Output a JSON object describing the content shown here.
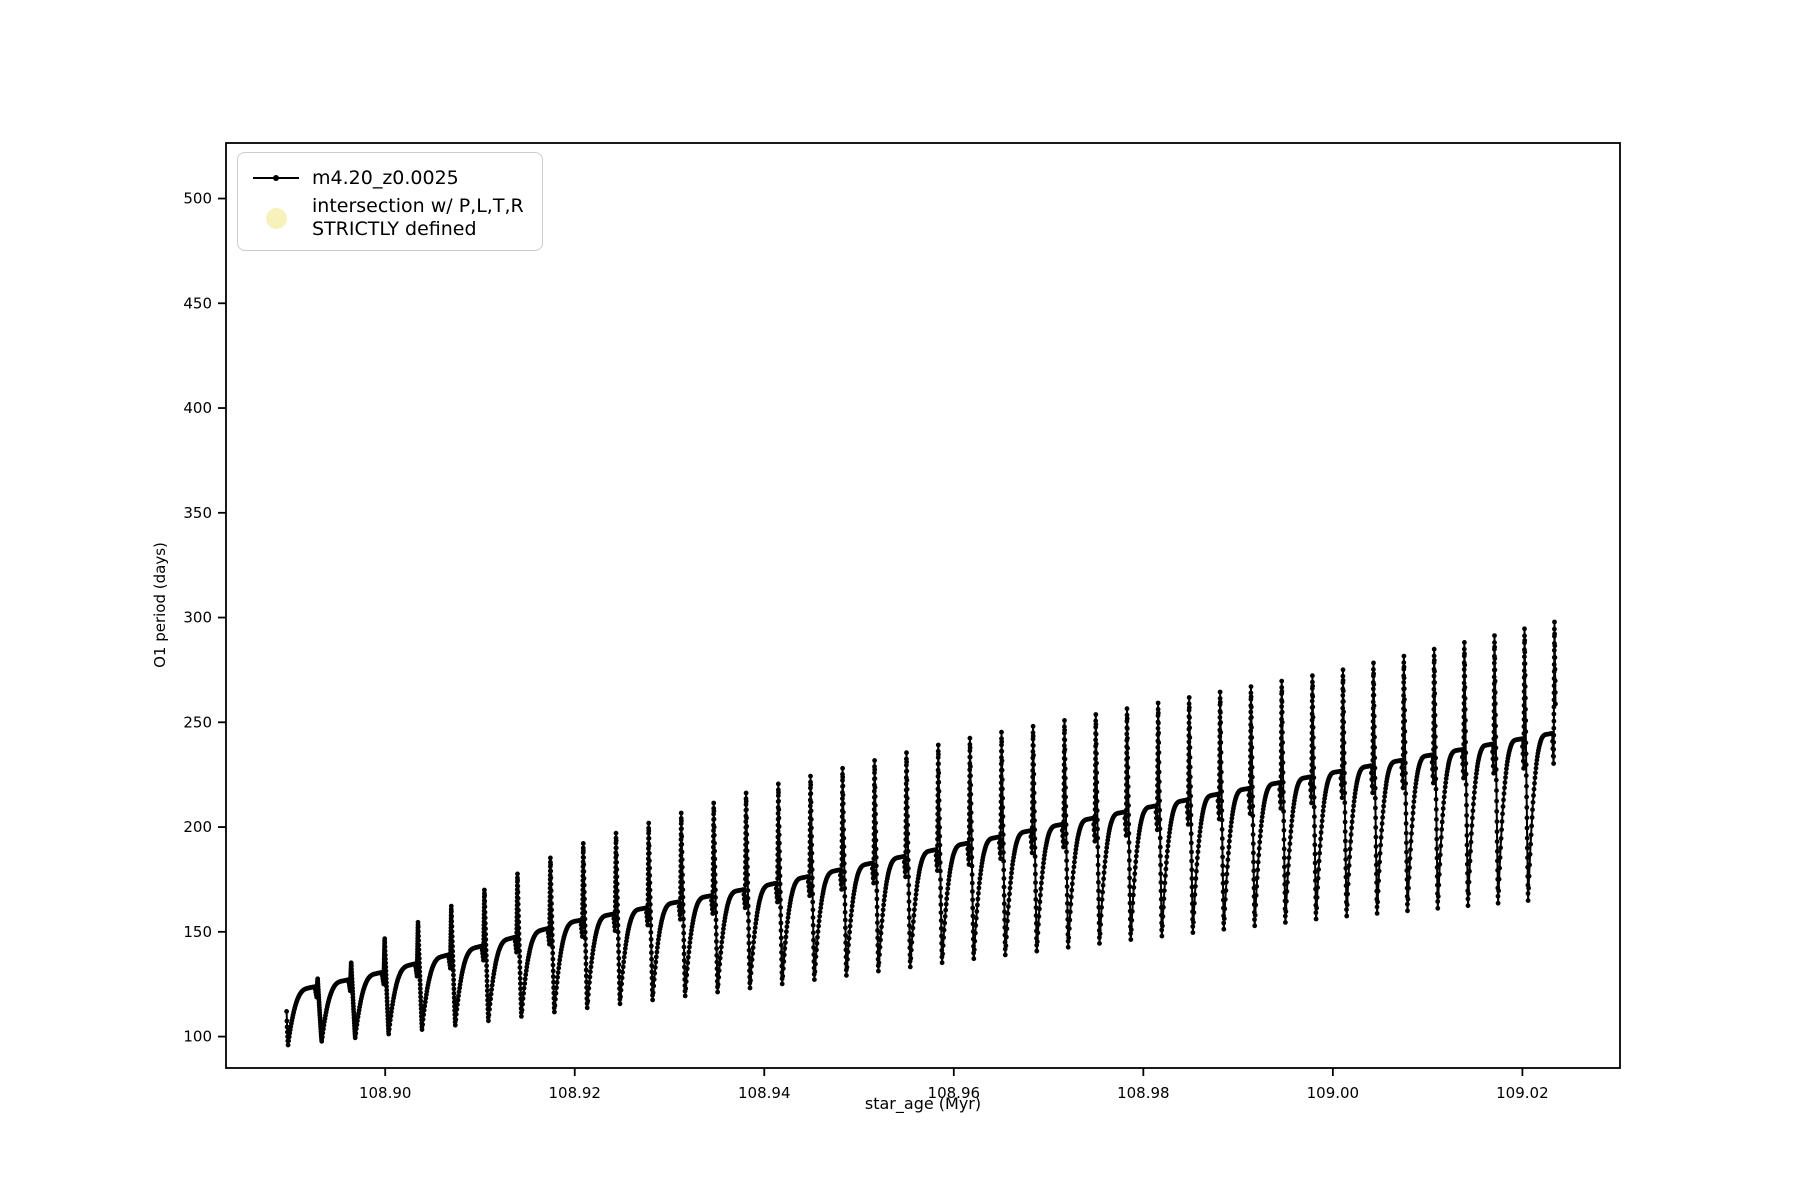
{
  "figure": {
    "background": "#ffffff"
  },
  "chart_data": {
    "type": "line",
    "title": "",
    "xlabel": "star_age (Myr)",
    "ylabel": "O1 period (days)",
    "xlim": [
      108.8832,
      109.0303
    ],
    "ylim": [
      85,
      526.5
    ],
    "grid": false,
    "xticks": {
      "values": [
        108.9,
        108.92,
        108.94,
        108.96,
        108.98,
        109.0,
        109.02
      ],
      "labels": [
        "108.90",
        "108.92",
        "108.94",
        "108.96",
        "108.98",
        "109.00",
        "109.02"
      ]
    },
    "yticks": {
      "values": [
        100,
        150,
        200,
        250,
        300,
        350,
        400,
        450,
        500
      ],
      "labels": [
        "100",
        "150",
        "200",
        "250",
        "300",
        "350",
        "400",
        "450",
        "500"
      ]
    },
    "legend": {
      "position": "upper left",
      "entries": [
        {
          "label": "m4.20_z0.0025",
          "type": "line-marker",
          "color": "#000000"
        },
        {
          "label": "intersection w/ P,L,T,R STRICTLY defined",
          "line1": "intersection w/ P,L,T,R",
          "line2": "STRICTLY defined",
          "type": "scatter",
          "color": "#f7f2bc"
        }
      ]
    },
    "series": [
      {
        "name": "m4.20_z0.0025",
        "color": "#000000",
        "style": "line+dot-markers",
        "shape": "repeating pulse: steep concave rise from a sharp V minimum to a plateau, small step-down notch, tall narrow vertical spike, steep fall to next V minimum; amplitude and level grow with time",
        "t_start": 108.8896,
        "t_end": 109.0235,
        "period_start": 0.00355,
        "period_end": 0.00315,
        "lead_in": {
          "from": 112,
          "to": 96
        },
        "envelope_keys": "[star_age, v_min, plateau, spike_peak]",
        "envelope": [
          [
            108.8896,
            96,
            121,
            121
          ],
          [
            108.896,
            99,
            127,
            134
          ],
          [
            108.9,
            101,
            131,
            147
          ],
          [
            108.92,
            113,
            155,
            191
          ],
          [
            108.94,
            124,
            172,
            219
          ],
          [
            108.96,
            136,
            191,
            241
          ],
          [
            108.98,
            147,
            209,
            258
          ],
          [
            109.0,
            157,
            226,
            274
          ],
          [
            109.0235,
            166,
            245,
            298
          ]
        ]
      }
    ]
  }
}
